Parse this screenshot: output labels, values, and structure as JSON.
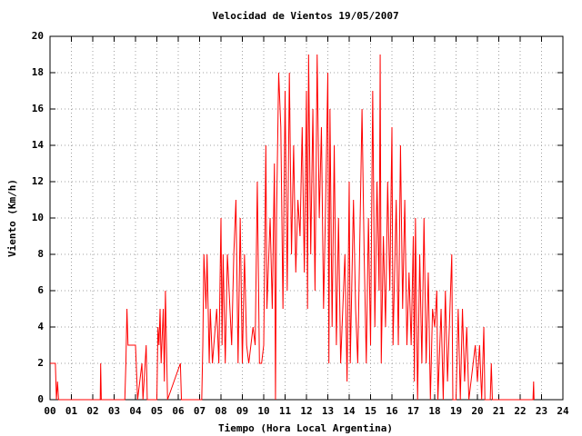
{
  "chart_data": {
    "type": "line",
    "title": "Velocidad de Vientos 19/05/2007",
    "xlabel": "Tiempo (Hora Local Argentina)",
    "ylabel": "Viento (Km/h)",
    "color": "#ff0000",
    "grid": true,
    "xlim": [
      0,
      24
    ],
    "ylim": [
      0,
      20
    ],
    "yticks": [
      0,
      2,
      4,
      6,
      8,
      10,
      12,
      14,
      16,
      18,
      20
    ],
    "xticks": [
      {
        "value": 0,
        "label": "00"
      },
      {
        "value": 1,
        "label": "01"
      },
      {
        "value": 2,
        "label": "02"
      },
      {
        "value": 3,
        "label": "03"
      },
      {
        "value": 4,
        "label": "04"
      },
      {
        "value": 5,
        "label": "05"
      },
      {
        "value": 6,
        "label": "06"
      },
      {
        "value": 7,
        "label": "07"
      },
      {
        "value": 8,
        "label": "08"
      },
      {
        "value": 9,
        "label": "09"
      },
      {
        "value": 10,
        "label": "10"
      },
      {
        "value": 11,
        "label": "11"
      },
      {
        "value": 12,
        "label": "12"
      },
      {
        "value": 13,
        "label": "13"
      },
      {
        "value": 14,
        "label": "14"
      },
      {
        "value": 15,
        "label": "15"
      },
      {
        "value": 16,
        "label": "16"
      },
      {
        "value": 17,
        "label": "17"
      },
      {
        "value": 18,
        "label": "18"
      },
      {
        "value": 19,
        "label": "19"
      },
      {
        "value": 20,
        "label": "20"
      },
      {
        "value": 21,
        "label": "21"
      },
      {
        "value": 22,
        "label": "22"
      },
      {
        "value": 23,
        "label": "23"
      },
      {
        "value": 24,
        "label": "24"
      }
    ],
    "x": [
      0,
      0.25,
      0.3,
      0.35,
      0.4,
      2.35,
      2.37,
      2.4,
      3.5,
      3.55,
      3.6,
      3.65,
      4.0,
      4.1,
      4.3,
      4.35,
      4.5,
      4.55,
      5.0,
      5.05,
      5.1,
      5.15,
      5.2,
      5.3,
      5.35,
      5.4,
      5.5,
      6.1,
      6.15,
      7.1,
      7.15,
      7.2,
      7.3,
      7.35,
      7.45,
      7.5,
      7.6,
      7.8,
      7.9,
      8.0,
      8.05,
      8.1,
      8.2,
      8.3,
      8.5,
      8.6,
      8.7,
      8.8,
      8.9,
      9.0,
      9.1,
      9.2,
      9.3,
      9.5,
      9.6,
      9.7,
      9.8,
      9.9,
      10.0,
      10.1,
      10.15,
      10.3,
      10.4,
      10.5,
      10.55,
      10.6,
      10.7,
      10.8,
      10.9,
      11.0,
      11.1,
      11.2,
      11.3,
      11.4,
      11.5,
      11.6,
      11.7,
      11.8,
      11.9,
      12.0,
      12.05,
      12.1,
      12.2,
      12.3,
      12.4,
      12.5,
      12.6,
      12.7,
      12.8,
      12.9,
      13.0,
      13.05,
      13.1,
      13.2,
      13.3,
      13.4,
      13.5,
      13.6,
      13.8,
      13.9,
      14.0,
      14.05,
      14.2,
      14.3,
      14.4,
      14.6,
      14.7,
      14.8,
      14.9,
      15.0,
      15.1,
      15.2,
      15.3,
      15.4,
      15.45,
      15.5,
      15.6,
      15.7,
      15.8,
      15.9,
      16.0,
      16.05,
      16.2,
      16.3,
      16.4,
      16.5,
      16.6,
      16.7,
      16.8,
      16.9,
      17.0,
      17.05,
      17.1,
      17.2,
      17.3,
      17.4,
      17.5,
      17.6,
      17.7,
      17.8,
      17.9,
      18.0,
      18.1,
      18.15,
      18.3,
      18.4,
      18.5,
      18.6,
      18.8,
      18.85,
      19.0,
      19.1,
      19.2,
      19.3,
      19.4,
      19.5,
      19.6,
      19.8,
      19.9,
      20.0,
      20.1,
      20.2,
      20.3,
      20.35,
      20.6,
      20.65,
      20.7,
      22.6,
      22.63,
      22.65
    ],
    "values": [
      2,
      2,
      0,
      1,
      0,
      0,
      2,
      0,
      0,
      2,
      5,
      3,
      3,
      0,
      2,
      0,
      3,
      0,
      0,
      4,
      3,
      5,
      2,
      5,
      1,
      6,
      0,
      2,
      0,
      0,
      3,
      8,
      5,
      8,
      2,
      5,
      2,
      5,
      2,
      10,
      3,
      8,
      2,
      8,
      3,
      8,
      11,
      2,
      10,
      2,
      8,
      3,
      2,
      4,
      3,
      12,
      2,
      2,
      3,
      14,
      5,
      10,
      5,
      13,
      0,
      10,
      18,
      15,
      5,
      17,
      6,
      18,
      8,
      14,
      7,
      11,
      9,
      15,
      7,
      17,
      5,
      19,
      8,
      16,
      6,
      19,
      10,
      15,
      5,
      11,
      18,
      2,
      16,
      4,
      14,
      3,
      10,
      2,
      8,
      1,
      12,
      2,
      11,
      5,
      2,
      16,
      8,
      2,
      10,
      3,
      17,
      4,
      12,
      6,
      19,
      2,
      9,
      4,
      12,
      6,
      15,
      3,
      11,
      3,
      14,
      5,
      11,
      3,
      7,
      3,
      9,
      1,
      10,
      0,
      8,
      2,
      10,
      2,
      7,
      0,
      5,
      4,
      6,
      0,
      5,
      0,
      6,
      1,
      8,
      0,
      0,
      5,
      0,
      5,
      1,
      4,
      0,
      2,
      3,
      1,
      3,
      0,
      4,
      0,
      0,
      2,
      0,
      0,
      1,
      0
    ]
  }
}
